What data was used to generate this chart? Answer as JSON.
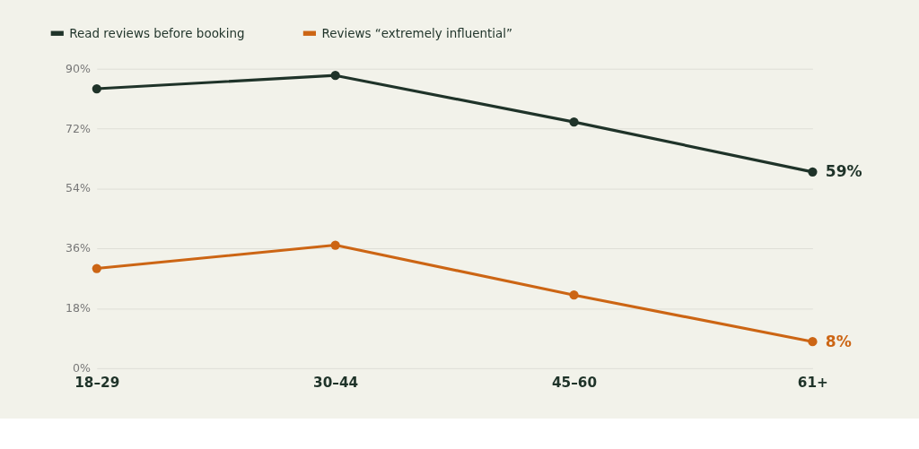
{
  "chart_data": {
    "type": "line",
    "categories": [
      "18–29",
      "30–44",
      "45–60",
      "61+"
    ],
    "series": [
      {
        "name": "Read reviews before booking",
        "color": "#1f3329",
        "values": [
          84,
          88,
          74,
          59
        ],
        "value_labels": [
          null,
          null,
          null,
          "59%"
        ]
      },
      {
        "name": "Reviews “extremely influential”",
        "color": "#cc6514",
        "values": [
          30,
          37,
          22,
          8
        ],
        "value_labels": [
          null,
          null,
          null,
          "8%"
        ]
      }
    ],
    "ylim": [
      0,
      90
    ],
    "yticks": [
      {
        "value": 0,
        "label": "0%"
      },
      {
        "value": 18,
        "label": "18%"
      },
      {
        "value": 36,
        "label": "36%"
      },
      {
        "value": 54,
        "label": "54%"
      },
      {
        "value": 72,
        "label": "72%"
      },
      {
        "value": 90,
        "label": "90%"
      }
    ],
    "grid": "y",
    "legend": "top left",
    "marker": "circle",
    "line_style": "solid"
  }
}
